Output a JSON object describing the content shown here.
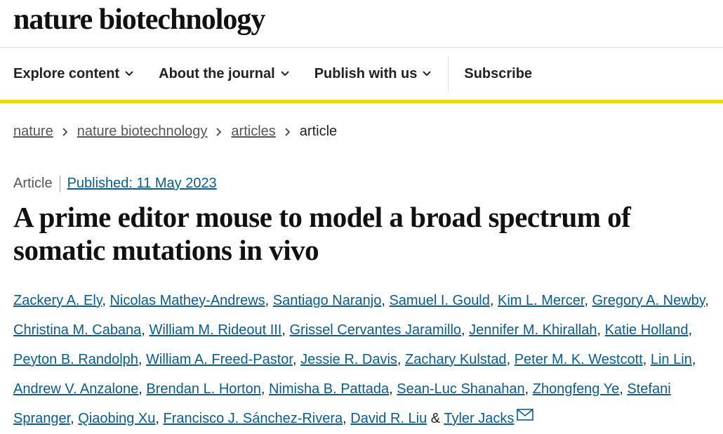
{
  "header": {
    "brand": "nature biotechnology"
  },
  "nav": {
    "items": [
      "Explore content",
      "About the journal",
      "Publish with us"
    ],
    "subscribe": "Subscribe"
  },
  "breadcrumbs": [
    "nature",
    "nature biotechnology",
    "articles",
    "article"
  ],
  "article": {
    "type": "Article",
    "published": "Published: 11 May 2023",
    "title": "A prime editor mouse to model a broad spectrum of somatic mutations in vivo",
    "authors": [
      "Zackery A. Ely",
      "Nicolas Mathey-Andrews",
      "Santiago Naranjo",
      "Samuel I. Gould",
      "Kim L. Mercer",
      "Gregory A. Newby",
      "Christina M. Cabana",
      "William M. Rideout III",
      "Grissel Cervantes Jaramillo",
      "Jennifer M. Khirallah",
      "Katie Holland",
      "Peyton B. Randolph",
      "William A. Freed-Pastor",
      "Jessie R. Davis",
      "Zachary Kulstad",
      "Peter M. K. Westcott",
      "Lin Lin",
      "Andrew V. Anzalone",
      "Brendan L. Horton",
      "Nimisha B. Pattada",
      "Sean-Luc Shanahan",
      "Zhongfeng Ye",
      "Stefani Spranger",
      "Qiaobing Xu",
      "Francisco J. Sánchez-Rivera",
      "David R. Liu",
      "Tyler Jacks"
    ],
    "separator": ",",
    "last_separator": "&"
  }
}
